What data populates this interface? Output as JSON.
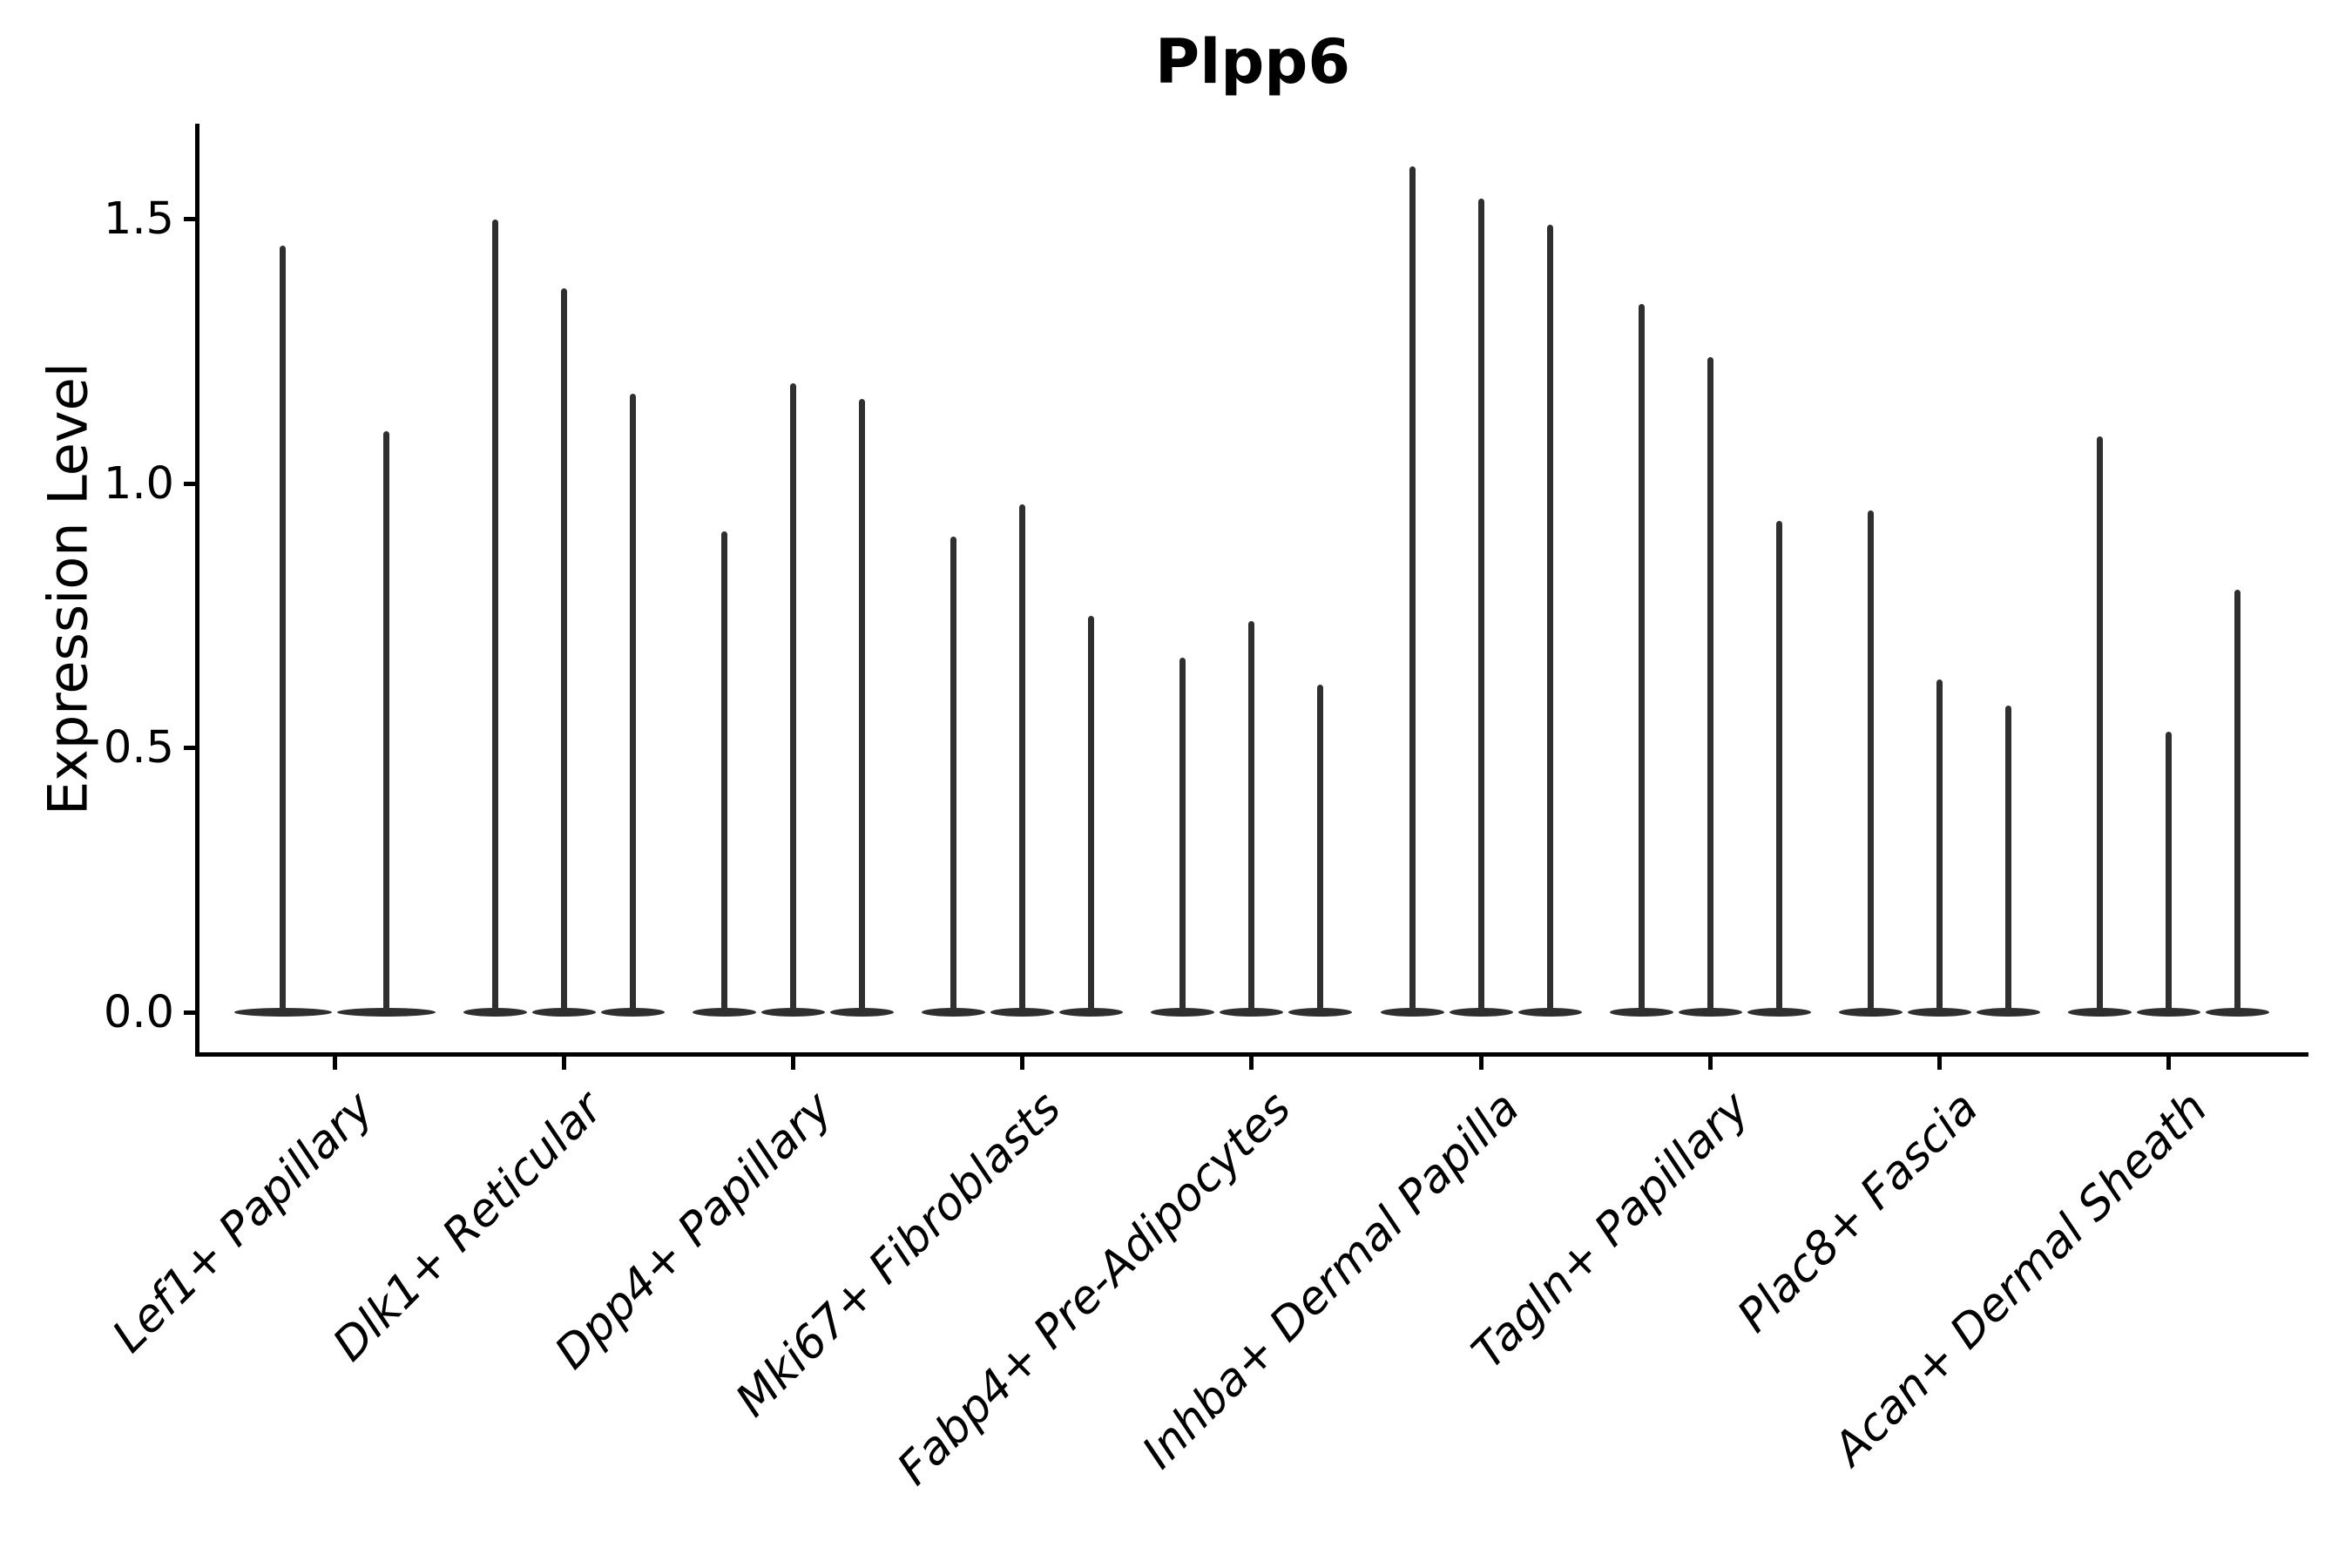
{
  "title": "Plpp6",
  "axes": {
    "ylabel": "Expression Level",
    "ytick_labels": [
      "0.0",
      "0.5",
      "1.0",
      "1.5"
    ]
  },
  "colors": {
    "violin": "#2f2f2f",
    "axis": "#000000",
    "text": "#000000",
    "background": "#ffffff"
  },
  "chart_data": {
    "type": "violin",
    "title": "Plpp6",
    "xlabel": "",
    "ylabel": "Expression Level",
    "ylim": [
      -0.08,
      1.68
    ],
    "yticks": [
      0.0,
      0.5,
      1.0,
      1.5
    ],
    "ytick_labels": [
      "0.0",
      "0.5",
      "1.0",
      "1.5"
    ],
    "grid": false,
    "legend": "none",
    "xtick_label_style": "italic, rotated 45deg",
    "violin_shape": "flat wide base at 0 with thin spike tail up to maximum",
    "categories": [
      "Lef1+ Papillary",
      "Dlk1+ Reticular",
      "Dpp4+ Papillary",
      "Mki67+ Fibroblasts",
      "Fabp4+ Pre-Adipocytes",
      "Inhba+ Dermal Papilla",
      "Tagln+ Papillary",
      "Plac8+ Fascia",
      "Acan+ Dermal Sheath"
    ],
    "series": [
      {
        "category": "Lef1+ Papillary",
        "baseline_value": 0.0,
        "violin_maxima": [
          1.45,
          1.1
        ]
      },
      {
        "category": "Dlk1+ Reticular",
        "baseline_value": 0.0,
        "violin_maxima": [
          1.5,
          1.37,
          1.17
        ]
      },
      {
        "category": "Dpp4+ Papillary",
        "baseline_value": 0.0,
        "violin_maxima": [
          0.91,
          1.19,
          1.16
        ]
      },
      {
        "category": "Mki67+ Fibroblasts",
        "baseline_value": 0.0,
        "violin_maxima": [
          0.9,
          0.96,
          0.75
        ]
      },
      {
        "category": "Fabp4+ Pre-Adipocytes",
        "baseline_value": 0.0,
        "violin_maxima": [
          0.67,
          0.74,
          0.62
        ]
      },
      {
        "category": "Inhba+ Dermal Papilla",
        "baseline_value": 0.0,
        "violin_maxima": [
          1.6,
          1.54,
          1.49
        ]
      },
      {
        "category": "Tagln+ Papillary",
        "baseline_value": 0.0,
        "violin_maxima": [
          1.34,
          1.24,
          0.93
        ]
      },
      {
        "category": "Plac8+ Fascia",
        "baseline_value": 0.0,
        "violin_maxima": [
          0.95,
          0.63,
          0.58
        ]
      },
      {
        "category": "Acan+ Dermal Sheath",
        "baseline_value": 0.0,
        "violin_maxima": [
          1.09,
          0.53,
          0.8
        ]
      }
    ]
  }
}
